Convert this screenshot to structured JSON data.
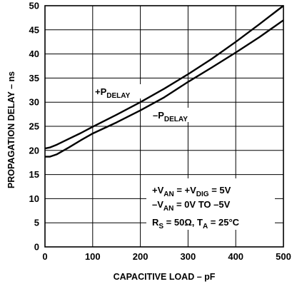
{
  "chart_data": {
    "type": "line",
    "xlabel": "CAPACITIVE LOAD – pF",
    "ylabel": "PROPAGATION DELAY – ns",
    "xlim": [
      0,
      500
    ],
    "ylim": [
      0,
      50
    ],
    "x_ticks": [
      "0",
      "100",
      "200",
      "300",
      "400",
      "500"
    ],
    "y_ticks": [
      "0",
      "5",
      "10",
      "15",
      "20",
      "25",
      "30",
      "35",
      "40",
      "45",
      "50"
    ],
    "grid": true,
    "series": [
      {
        "name_main": "+P",
        "name_sub": "DELAY",
        "x": [
          0,
          10,
          25,
          50,
          75,
          100,
          150,
          200,
          250,
          300,
          350,
          400,
          450,
          500
        ],
        "y": [
          20.4,
          20.6,
          21.2,
          22.4,
          23.6,
          24.9,
          27.4,
          30.0,
          32.8,
          35.8,
          39.0,
          42.5,
          46.2,
          50.0
        ]
      },
      {
        "name_main": "–P",
        "name_sub": "DELAY",
        "x": [
          0,
          10,
          25,
          50,
          75,
          100,
          150,
          200,
          250,
          300,
          350,
          400,
          450,
          500
        ],
        "y": [
          18.7,
          18.7,
          19.2,
          20.6,
          22.1,
          23.5,
          25.8,
          28.3,
          31.0,
          34.2,
          37.2,
          40.3,
          43.5,
          47.0
        ]
      }
    ],
    "conditions": [
      {
        "parts": [
          {
            "t": "+V",
            "sub": false
          },
          {
            "t": "AN",
            "sub": true
          },
          {
            "t": " = +V",
            "sub": false
          },
          {
            "t": "DIG",
            "sub": true
          },
          {
            "t": " = 5V",
            "sub": false
          }
        ]
      },
      {
        "parts": [
          {
            "t": "–V",
            "sub": false
          },
          {
            "t": "AN",
            "sub": true
          },
          {
            "t": " = 0V  TO –5V",
            "sub": false
          }
        ]
      },
      {
        "parts": [
          {
            "t": "R",
            "sub": false
          },
          {
            "t": "S",
            "sub": true
          },
          {
            "t": " = 50Ω, T",
            "sub": false
          },
          {
            "t": "A",
            "sub": true
          },
          {
            "t": " = 25°C",
            "sub": false
          }
        ]
      }
    ]
  }
}
